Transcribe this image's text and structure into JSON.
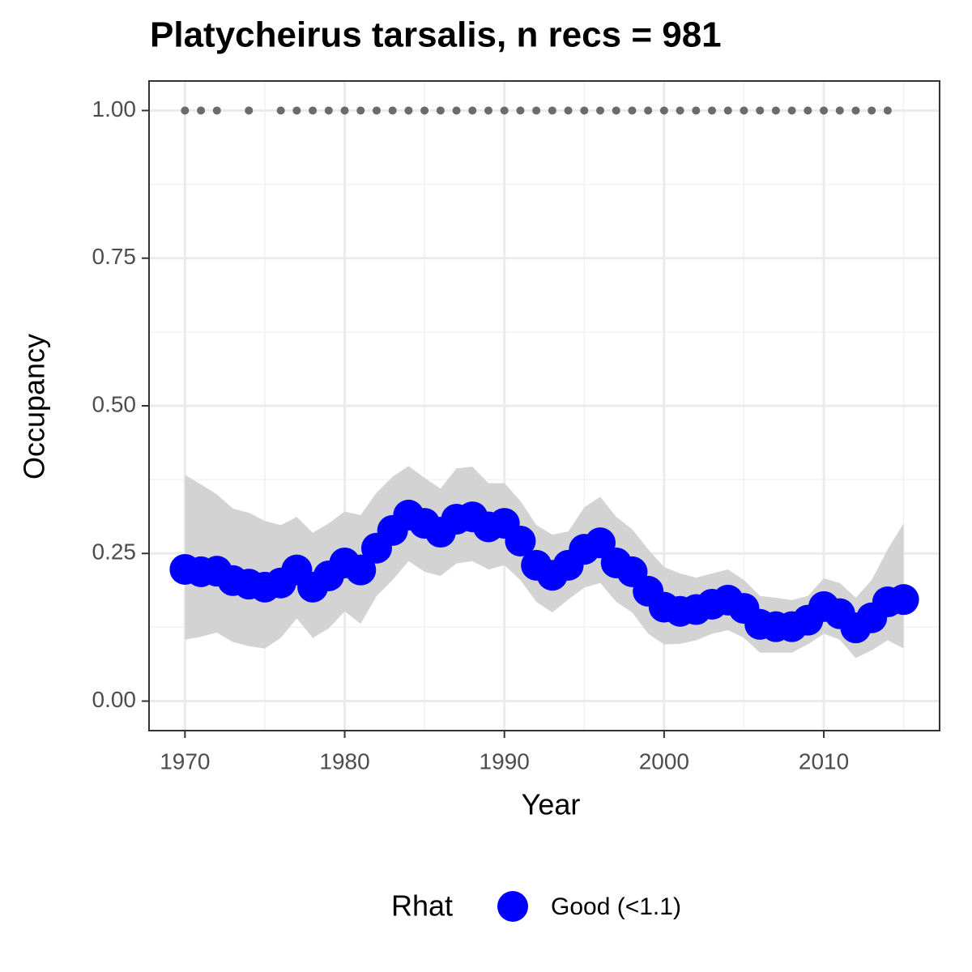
{
  "chart_data": {
    "type": "line",
    "title": "Platycheirus tarsalis, n recs = 981",
    "x_label": "Year",
    "y_label": "Occupancy",
    "legend_title": "Rhat",
    "x": [
      1970,
      1971,
      1972,
      1973,
      1974,
      1975,
      1976,
      1977,
      1978,
      1979,
      1980,
      1981,
      1982,
      1983,
      1984,
      1985,
      1986,
      1987,
      1988,
      1989,
      1990,
      1991,
      1992,
      1993,
      1994,
      1995,
      1996,
      1997,
      1998,
      1999,
      2000,
      2001,
      2002,
      2003,
      2004,
      2005,
      2006,
      2007,
      2008,
      2009,
      2010,
      2011,
      2012,
      2013,
      2014,
      2015
    ],
    "series": [
      {
        "name": "Good (<1.1)",
        "color": "#0000ff",
        "values": [
          0.223,
          0.219,
          0.22,
          0.204,
          0.198,
          0.193,
          0.2,
          0.222,
          0.193,
          0.212,
          0.234,
          0.222,
          0.259,
          0.289,
          0.315,
          0.301,
          0.286,
          0.308,
          0.312,
          0.295,
          0.301,
          0.271,
          0.23,
          0.213,
          0.23,
          0.257,
          0.268,
          0.234,
          0.219,
          0.186,
          0.159,
          0.152,
          0.155,
          0.164,
          0.171,
          0.157,
          0.13,
          0.126,
          0.126,
          0.137,
          0.16,
          0.148,
          0.124,
          0.141,
          0.168,
          0.172
        ],
        "lower": [
          0.104,
          0.109,
          0.116,
          0.1,
          0.093,
          0.089,
          0.107,
          0.14,
          0.107,
          0.123,
          0.152,
          0.131,
          0.178,
          0.205,
          0.237,
          0.219,
          0.212,
          0.233,
          0.237,
          0.223,
          0.23,
          0.205,
          0.168,
          0.15,
          0.172,
          0.192,
          0.2,
          0.168,
          0.15,
          0.114,
          0.096,
          0.097,
          0.103,
          0.114,
          0.12,
          0.107,
          0.082,
          0.082,
          0.082,
          0.096,
          0.114,
          0.104,
          0.073,
          0.086,
          0.103,
          0.089
        ],
        "upper": [
          0.383,
          0.367,
          0.35,
          0.326,
          0.319,
          0.305,
          0.298,
          0.312,
          0.285,
          0.301,
          0.321,
          0.315,
          0.353,
          0.38,
          0.398,
          0.378,
          0.36,
          0.394,
          0.397,
          0.369,
          0.369,
          0.339,
          0.298,
          0.282,
          0.287,
          0.328,
          0.346,
          0.312,
          0.291,
          0.257,
          0.227,
          0.216,
          0.209,
          0.216,
          0.223,
          0.205,
          0.178,
          0.175,
          0.171,
          0.178,
          0.208,
          0.2,
          0.175,
          0.205,
          0.257,
          0.301
        ]
      }
    ],
    "band_color": "#d3d3d3",
    "records": {
      "color": "#6b6b6b",
      "x": [
        1970,
        1971,
        1972,
        1974,
        1976,
        1977,
        1978,
        1979,
        1980,
        1981,
        1982,
        1983,
        1984,
        1985,
        1986,
        1987,
        1988,
        1989,
        1990,
        1991,
        1992,
        1993,
        1994,
        1995,
        1996,
        1997,
        1998,
        1999,
        2000,
        2001,
        2002,
        2003,
        2004,
        2005,
        2006,
        2007,
        2008,
        2009,
        2010,
        2011,
        2012,
        2013,
        2014
      ],
      "values": [
        1,
        1,
        1,
        1,
        1,
        1,
        1,
        1,
        1,
        1,
        1,
        1,
        1,
        1,
        1,
        1,
        1,
        1,
        1,
        1,
        1,
        1,
        1,
        1,
        1,
        1,
        1,
        1,
        1,
        1,
        1,
        1,
        1,
        1,
        1,
        1,
        1,
        1,
        1,
        1,
        1,
        1,
        1
      ]
    },
    "xlim": [
      1967.75,
      2017.25
    ],
    "xticks": [
      1970,
      1980,
      1990,
      2000,
      2010
    ],
    "ylim": [
      -0.05,
      1.05
    ],
    "yticks": [
      {
        "value": 0,
        "label": "0.00"
      },
      {
        "value": 0.25,
        "label": "0.25"
      },
      {
        "value": 0.5,
        "label": "0.50"
      },
      {
        "value": 0.75,
        "label": "0.75"
      },
      {
        "value": 1,
        "label": "1.00"
      }
    ],
    "grid": true,
    "legend": "bottom"
  }
}
